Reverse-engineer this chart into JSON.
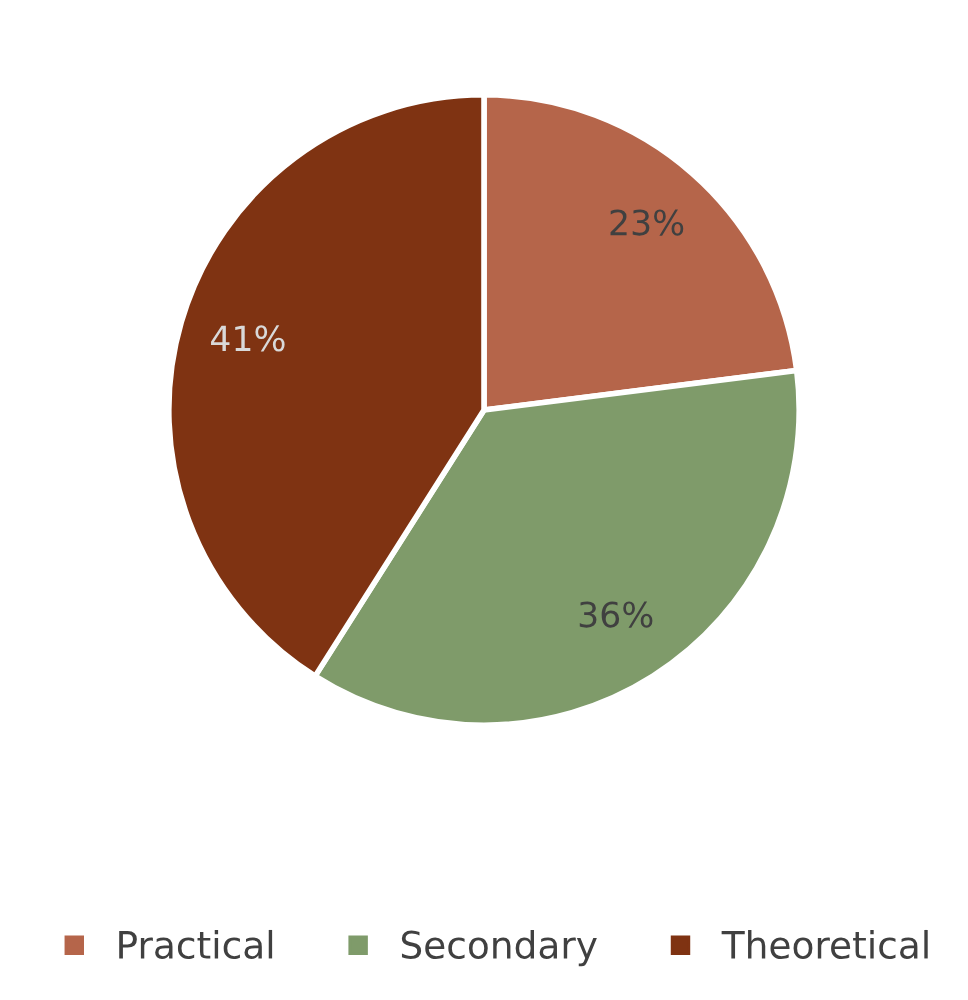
{
  "chart_data": {
    "type": "pie",
    "categories": [
      "Practical",
      "Secondary",
      "Theoretical"
    ],
    "values": [
      23,
      36,
      41
    ],
    "value_labels": [
      "23%",
      "36%",
      "41%"
    ],
    "colors": [
      "#b5654a",
      "#7f9b6a",
      "#7f3312"
    ],
    "legend": "bottom"
  }
}
